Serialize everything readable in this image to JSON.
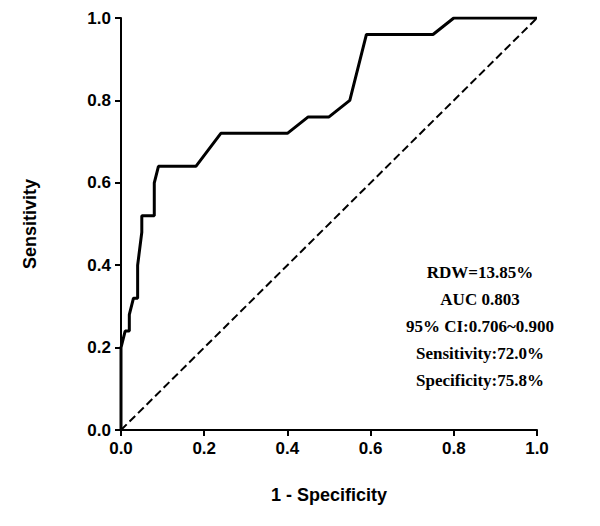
{
  "chart_data": {
    "type": "line",
    "xlabel": "1 - Specificity",
    "ylabel": "Sensitivity",
    "xlim": [
      0,
      1
    ],
    "ylim": [
      0,
      1
    ],
    "xticks": [
      {
        "value": 0,
        "label": "0.0"
      },
      0.2,
      0.4,
      0.6,
      0.8,
      {
        "value": 1,
        "label": "1.0"
      }
    ],
    "yticks": [
      {
        "value": 0,
        "label": "0.0"
      },
      0.2,
      0.4,
      0.6,
      0.8,
      {
        "value": 1,
        "label": "1.0"
      }
    ],
    "grid": false,
    "series": [
      {
        "color": "#000000",
        "line_style": "solid",
        "x": [
          0,
          0,
          0,
          0.01,
          0.02,
          0.02,
          0.03,
          0.04,
          0.04,
          0.05,
          0.05,
          0.08,
          0.08,
          0.09,
          0.18,
          0.21,
          0.24,
          0.4,
          0.45,
          0.5,
          0.55,
          0.59,
          0.75,
          0.8,
          1.0
        ],
        "values": [
          0,
          0.04,
          0.2,
          0.24,
          0.24,
          0.28,
          0.32,
          0.32,
          0.4,
          0.48,
          0.52,
          0.52,
          0.6,
          0.64,
          0.64,
          0.68,
          0.72,
          0.72,
          0.76,
          0.76,
          0.8,
          0.96,
          0.96,
          1.0,
          1.0
        ]
      },
      {
        "color": "#000000",
        "line_style": "dashed",
        "x": [
          0,
          1
        ],
        "values": [
          0,
          1
        ]
      }
    ],
    "annotations": [
      "RDW=13.85%",
      "AUC 0.803",
      "95% CI:0.706~0.900",
      "Sensitivity:72.0%",
      "Specificity:75.8%"
    ]
  }
}
